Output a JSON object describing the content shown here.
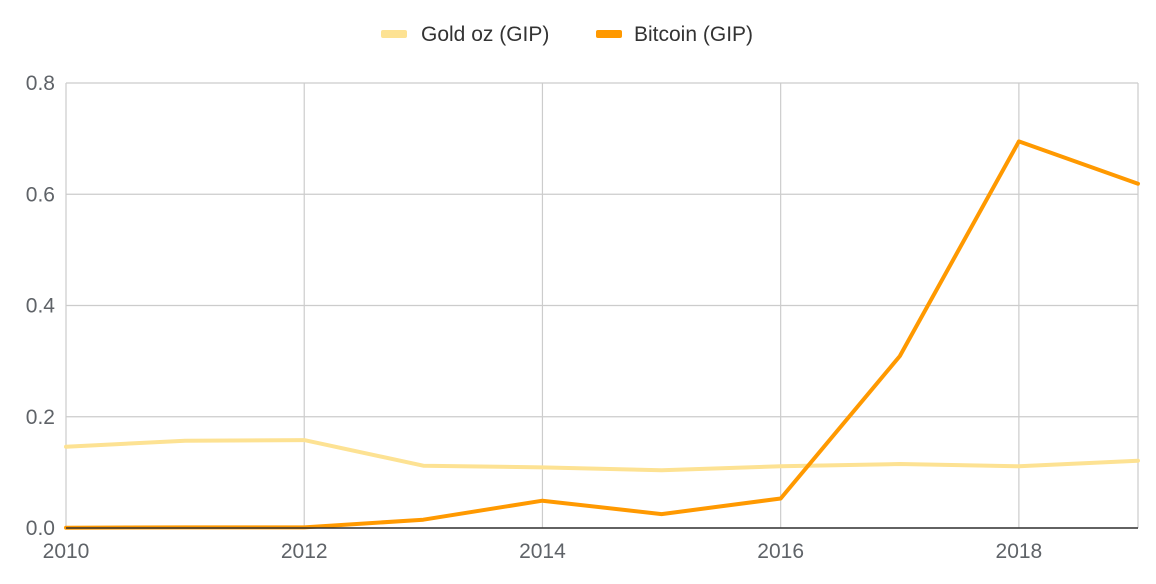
{
  "chart_data": {
    "type": "line",
    "title": "",
    "xlabel": "",
    "ylabel": "",
    "x": [
      2010,
      2011,
      2012,
      2013,
      2014,
      2015,
      2016,
      2017,
      2018,
      2019
    ],
    "xlim": [
      2010,
      2019
    ],
    "ylim": [
      0,
      0.8
    ],
    "x_ticks": [
      "2010",
      "2012",
      "2014",
      "2016",
      "2018"
    ],
    "y_ticks": [
      "0.0",
      "0.2",
      "0.4",
      "0.6",
      "0.8"
    ],
    "grid": true,
    "legend_position": "top-center",
    "series": [
      {
        "name": "Gold oz (GIP)",
        "color": "#fde293",
        "values": [
          0.146,
          0.157,
          0.158,
          0.112,
          0.109,
          0.104,
          0.111,
          0.115,
          0.111,
          0.121
        ]
      },
      {
        "name": "Bitcoin (GIP)",
        "color": "#ff9900",
        "values": [
          0.0005,
          0.001,
          0.001,
          0.015,
          0.049,
          0.025,
          0.053,
          0.309,
          0.695,
          0.619
        ]
      }
    ]
  }
}
